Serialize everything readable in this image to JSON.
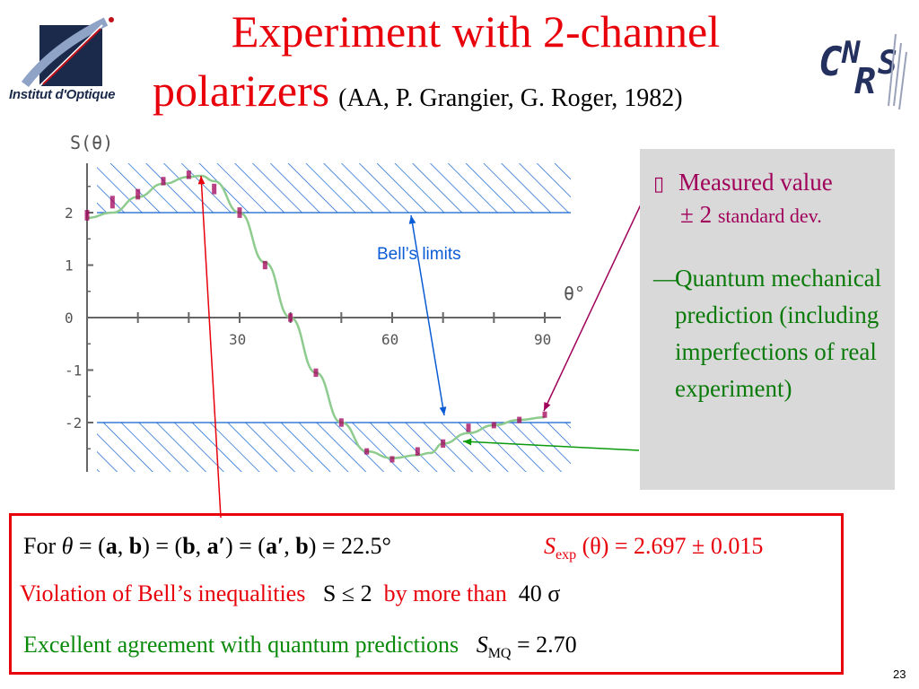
{
  "title": {
    "line1": "Experiment with 2-channel",
    "line2": "polarizers",
    "citation": "(AA, P. Grangier, G. Roger, 1982)"
  },
  "logos": {
    "left_text": "Institut d'Optique",
    "right_text": "CNRS"
  },
  "annotations": {
    "bell_limits": "Bell’s limits"
  },
  "legend": {
    "measured_mark": "▯",
    "measured_line1": "Measured value",
    "measured_pm": "± 2",
    "measured_sub": "standard dev.",
    "qm_dash": "—",
    "qm_text": "Quantum mechanical prediction (including imperfections of real experiment)"
  },
  "results": {
    "for_label": "For",
    "theta": "θ",
    "eq1": " = (",
    "a1": "a",
    "comma1": ", ",
    "b1": "b",
    "eq2": ") = (",
    "b2": "b",
    "comma2": ", ",
    "a2": "a′",
    "eq3": ") = (",
    "a3": "a′",
    "comma3": ", ",
    "b3": "b",
    "eq4": ") = 22.5°",
    "sexp_S": "S",
    "sexp_sub": "exp",
    "sexp_rest": "(θ) = 2.697 ± 0.015",
    "violation_text": "Violation of  Bell’s inequalities",
    "violation_math": "S ≤ 2",
    "violation_more": "by more than",
    "violation_val": "40 σ",
    "agreement_text": "Excellent agreement with quantum predictions",
    "smq_S": "S",
    "smq_sub": "MQ",
    "smq_val": " = 2.70"
  },
  "page_number": "23",
  "colors": {
    "title_red": "#e8000b",
    "measured": "#a0005a",
    "qm_curve": "#8ecb8e",
    "bell_blue": "#0a5bd6",
    "hatch": "#1060d0",
    "legend_bg": "#d9d9d9"
  },
  "chart_data": {
    "type": "scatter",
    "ylabel": "S(θ)",
    "xlabel": "θ°",
    "xlim": [
      0,
      90
    ],
    "ylim": [
      -3,
      3
    ],
    "x_ticks": [
      "30",
      "60",
      "90"
    ],
    "y_ticks": [
      "2",
      "1",
      "0",
      "-1",
      "-2"
    ],
    "bell_limits": [
      2,
      -2
    ],
    "measured": {
      "name": "Measured value ± 2 standard dev.",
      "x": [
        0,
        5,
        10,
        15,
        20,
        25,
        30,
        35,
        40,
        45,
        50,
        55,
        60,
        65,
        70,
        75,
        80,
        85,
        90
      ],
      "y": [
        1.95,
        2.2,
        2.35,
        2.6,
        2.72,
        2.45,
        2.0,
        1.0,
        0.0,
        -1.05,
        -2.0,
        -2.55,
        -2.7,
        -2.55,
        -2.4,
        -2.1,
        -2.05,
        -1.95,
        -1.85
      ],
      "err": [
        0.1,
        0.12,
        0.1,
        0.08,
        0.08,
        0.1,
        0.1,
        0.08,
        0.08,
        0.08,
        0.08,
        0.06,
        0.06,
        0.08,
        0.08,
        0.08,
        0.06,
        0.06,
        0.06
      ]
    },
    "prediction": {
      "name": "Quantum mechanical prediction (including imperfections of real experiment)",
      "x": [
        0,
        5,
        10,
        15,
        20,
        22.5,
        25,
        30,
        35,
        40,
        45,
        50,
        55,
        60,
        65,
        67.5,
        70,
        75,
        80,
        85,
        90
      ],
      "y": [
        1.9,
        2.0,
        2.3,
        2.55,
        2.68,
        2.7,
        2.6,
        2.0,
        1.05,
        0.0,
        -1.05,
        -2.0,
        -2.55,
        -2.68,
        -2.62,
        -2.58,
        -2.4,
        -2.2,
        -2.05,
        -1.95,
        -1.9
      ]
    }
  }
}
